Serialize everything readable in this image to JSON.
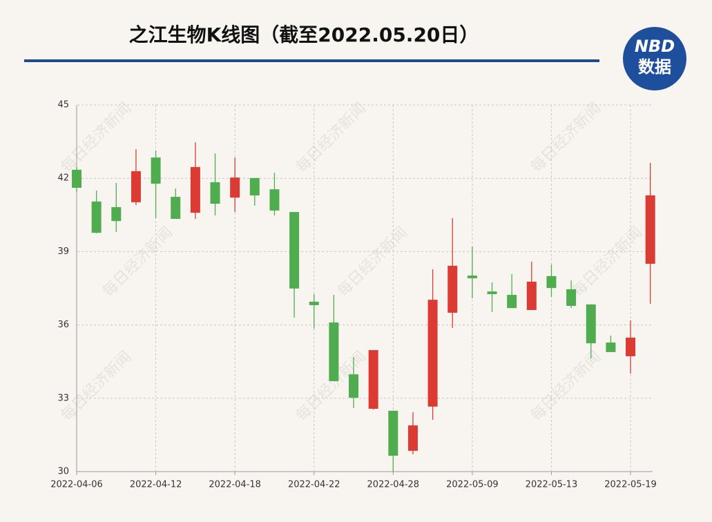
{
  "chart_data": {
    "type": "candlestick",
    "title": "之江生物K线图（截至2022.05.20日）",
    "logo": {
      "top": "NBD",
      "bottom": "数据"
    },
    "watermark": "每日经济新闻",
    "categories": [
      "2022-04-06",
      null,
      null,
      null,
      "2022-04-12",
      null,
      null,
      null,
      "2022-04-18",
      null,
      null,
      null,
      "2022-04-22",
      null,
      null,
      null,
      "2022-04-28",
      null,
      null,
      null,
      "2022-05-09",
      null,
      null,
      null,
      "2022-05-13",
      null,
      null,
      null,
      "2022-05-19",
      null
    ],
    "open": [
      42.35,
      41.05,
      40.82,
      41.02,
      42.85,
      41.24,
      40.59,
      41.84,
      41.21,
      42.01,
      41.55,
      40.62,
      36.95,
      36.1,
      33.98,
      32.57,
      32.49,
      30.85,
      32.66,
      36.5,
      38.02,
      37.37,
      37.23,
      36.61,
      38.0,
      37.46,
      36.84,
      35.28,
      34.72,
      38.5
    ],
    "high": [
      42.46,
      41.5,
      41.81,
      43.19,
      43.14,
      41.58,
      43.47,
      43.02,
      42.85,
      42.01,
      42.23,
      40.62,
      37.26,
      37.23,
      34.69,
      34.97,
      32.49,
      32.43,
      38.28,
      40.37,
      39.21,
      37.74,
      38.08,
      38.59,
      38.47,
      37.82,
      36.84,
      35.56,
      36.19,
      42.63
    ],
    "low": [
      41.44,
      39.75,
      39.8,
      40.9,
      40.37,
      40.34,
      40.34,
      40.48,
      40.62,
      40.88,
      40.48,
      36.3,
      35.85,
      33.7,
      32.6,
      32.54,
      30.0,
      30.71,
      32.12,
      35.88,
      37.09,
      36.53,
      36.69,
      36.61,
      37.15,
      36.69,
      34.63,
      34.89,
      34.01,
      36.86
    ],
    "close": [
      41.61,
      39.77,
      40.25,
      42.29,
      41.78,
      40.34,
      42.46,
      40.96,
      42.03,
      41.3,
      40.68,
      37.49,
      36.81,
      33.7,
      33.02,
      34.97,
      30.65,
      31.89,
      37.03,
      38.42,
      37.91,
      37.26,
      36.69,
      37.77,
      37.51,
      36.78,
      35.25,
      34.89,
      35.48,
      41.3
    ],
    "up_color": "#dc3b34",
    "down_color": "#4fad4f",
    "ylim": [
      30,
      45
    ],
    "yticks": [
      30,
      33,
      36,
      39,
      42,
      45
    ],
    "grid": true
  }
}
